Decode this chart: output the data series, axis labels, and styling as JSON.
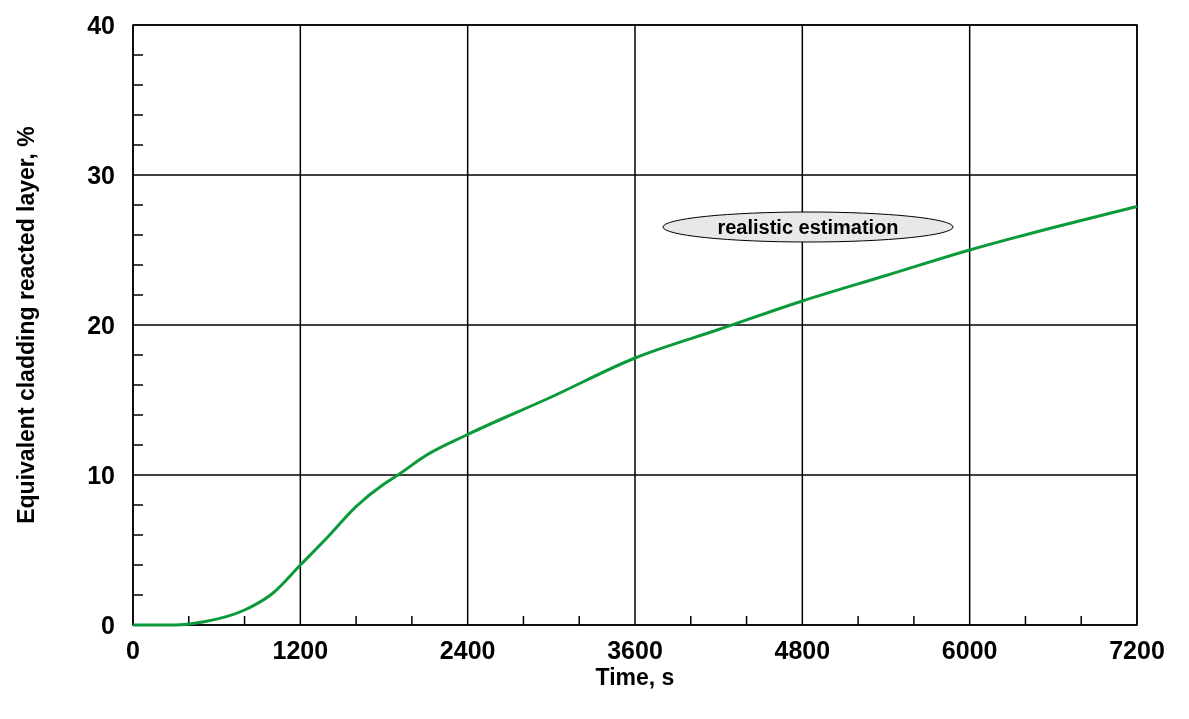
{
  "chart_data": {
    "type": "line",
    "xlabel": "Time, s",
    "ylabel": "Equivalent cladding reacted layer, %",
    "annotations": [
      "realistic estimation"
    ],
    "x": [
      0,
      300,
      500,
      800,
      1000,
      1200,
      1400,
      1600,
      1800,
      1900,
      2100,
      2400,
      3000,
      3600,
      4200,
      4800,
      5400,
      6000,
      6600,
      7200
    ],
    "series": [
      {
        "color": "#0a9a3a",
        "values": [
          0,
          0,
          0.2,
          1.0,
          2.1,
          4.0,
          5.9,
          7.9,
          9.4,
          10,
          11.3,
          12.7,
          15.2,
          17.8,
          19.7,
          21.6,
          23.3,
          25.0,
          26.5,
          27.9
        ]
      }
    ],
    "xlim": [
      0,
      7200
    ],
    "ylim": [
      0,
      40
    ],
    "xticks": [
      0,
      {
        "value": 400,
        "label": null
      },
      {
        "value": 800,
        "label": null
      },
      1200,
      {
        "value": 1600,
        "label": null
      },
      {
        "value": 2000,
        "label": null
      },
      2400,
      {
        "value": 2800,
        "label": null
      },
      {
        "value": 3200,
        "label": null
      },
      3600,
      {
        "value": 4000,
        "label": null
      },
      {
        "value": 4400,
        "label": null
      },
      4800,
      {
        "value": 5200,
        "label": null
      },
      {
        "value": 5600,
        "label": null
      },
      6000,
      {
        "value": 6400,
        "label": null
      },
      {
        "value": 6800,
        "label": null
      },
      7200
    ],
    "yticks": [
      0,
      {
        "value": 2,
        "label": null
      },
      {
        "value": 4,
        "label": null
      },
      {
        "value": 6,
        "label": null
      },
      {
        "value": 8,
        "label": null
      },
      10,
      {
        "value": 12,
        "label": null
      },
      {
        "value": 14,
        "label": null
      },
      {
        "value": 16,
        "label": null
      },
      {
        "value": 18,
        "label": null
      },
      20,
      {
        "value": 22,
        "label": null
      },
      {
        "value": 24,
        "label": null
      },
      {
        "value": 26,
        "label": null
      },
      {
        "value": 28,
        "label": null
      },
      30,
      {
        "value": 32,
        "label": null
      },
      {
        "value": 34,
        "label": null
      },
      {
        "value": 36,
        "label": null
      },
      {
        "value": 38,
        "label": null
      },
      40
    ],
    "grid": true,
    "line_style": "solid",
    "marker": "none"
  }
}
